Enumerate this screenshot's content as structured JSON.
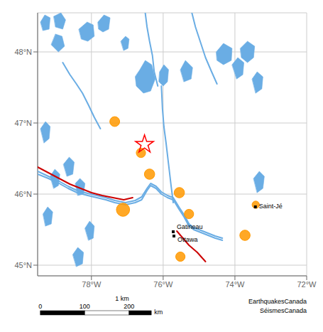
{
  "chart_data": {
    "type": "map",
    "xlim": [
      -79.5,
      -72
    ],
    "ylim": [
      44.85,
      48.55
    ],
    "xticks": [
      {
        "value": -78,
        "label": "78°W"
      },
      {
        "value": -76,
        "label": "76°W"
      },
      {
        "value": -74,
        "label": "74°W"
      },
      {
        "value": -72,
        "label": "72°W"
      }
    ],
    "yticks": [
      {
        "value": 45,
        "label": "45°N"
      },
      {
        "value": 46,
        "label": "46°N"
      },
      {
        "value": 47,
        "label": "47°N"
      },
      {
        "value": 48,
        "label": "48°N"
      }
    ],
    "grid": true,
    "series": [
      {
        "type": "polygon",
        "color": "#6aade4",
        "polygons": [
          [
            [
              -79.42,
              48.42
            ],
            [
              -79.3,
              48.52
            ],
            [
              -79.15,
              48.48
            ],
            [
              -79.18,
              48.32
            ],
            [
              -79.35,
              48.3
            ]
          ],
          [
            [
              -79.05,
              48.5
            ],
            [
              -78.85,
              48.55
            ],
            [
              -78.72,
              48.45
            ],
            [
              -78.8,
              48.32
            ],
            [
              -79.0,
              48.35
            ]
          ],
          [
            [
              -79.12,
              48.1
            ],
            [
              -78.92,
              48.0
            ],
            [
              -78.75,
              48.08
            ],
            [
              -78.82,
              48.22
            ],
            [
              -79.0,
              48.25
            ]
          ],
          [
            [
              -78.35,
              48.32
            ],
            [
              -78.12,
              48.42
            ],
            [
              -77.95,
              48.38
            ],
            [
              -77.92,
              48.22
            ],
            [
              -78.1,
              48.15
            ],
            [
              -78.28,
              48.18
            ]
          ],
          [
            [
              -77.82,
              48.42
            ],
            [
              -77.65,
              48.52
            ],
            [
              -77.48,
              48.48
            ],
            [
              -77.52,
              48.32
            ],
            [
              -77.68,
              48.28
            ],
            [
              -77.8,
              48.32
            ]
          ],
          [
            [
              -77.18,
              48.15
            ],
            [
              -77.05,
              48.22
            ],
            [
              -76.95,
              48.18
            ],
            [
              -76.98,
              48.05
            ],
            [
              -77.1,
              48.02
            ]
          ],
          [
            [
              -76.65,
              47.75
            ],
            [
              -76.5,
              47.88
            ],
            [
              -76.32,
              47.82
            ],
            [
              -76.22,
              47.62
            ],
            [
              -76.35,
              47.45
            ],
            [
              -76.55,
              47.42
            ],
            [
              -76.75,
              47.52
            ],
            [
              -76.78,
              47.65
            ]
          ],
          [
            [
              -76.1,
              47.72
            ],
            [
              -75.98,
              47.82
            ],
            [
              -75.85,
              47.75
            ],
            [
              -75.88,
              47.58
            ],
            [
              -76.0,
              47.52
            ],
            [
              -76.12,
              47.58
            ]
          ],
          [
            [
              -75.52,
              47.75
            ],
            [
              -75.38,
              47.88
            ],
            [
              -75.18,
              47.78
            ],
            [
              -75.22,
              47.62
            ],
            [
              -75.42,
              47.58
            ]
          ],
          [
            [
              -74.52,
              48.0
            ],
            [
              -74.32,
              48.12
            ],
            [
              -74.08,
              48.05
            ],
            [
              -74.1,
              47.88
            ],
            [
              -74.32,
              47.82
            ],
            [
              -74.5,
              47.88
            ]
          ],
          [
            [
              -73.85,
              48.05
            ],
            [
              -73.65,
              48.15
            ],
            [
              -73.45,
              48.08
            ],
            [
              -73.48,
              47.92
            ],
            [
              -73.65,
              47.85
            ],
            [
              -73.82,
              47.92
            ]
          ],
          [
            [
              -79.42,
              46.92
            ],
            [
              -79.28,
              47.02
            ],
            [
              -79.15,
              46.95
            ],
            [
              -79.18,
              46.78
            ],
            [
              -79.32,
              46.72
            ]
          ],
          [
            [
              -79.35,
              45.72
            ],
            [
              -79.22,
              45.82
            ],
            [
              -79.08,
              45.75
            ],
            [
              -79.12,
              45.58
            ],
            [
              -79.28,
              45.55
            ]
          ],
          [
            [
              -78.78,
              46.42
            ],
            [
              -78.62,
              46.52
            ],
            [
              -78.48,
              46.45
            ],
            [
              -78.52,
              46.28
            ],
            [
              -78.68,
              46.25
            ]
          ],
          [
            [
              -78.45,
              46.15
            ],
            [
              -78.32,
              46.22
            ],
            [
              -78.18,
              46.15
            ],
            [
              -78.22,
              46.0
            ],
            [
              -78.38,
              45.98
            ]
          ],
          [
            [
              -78.18,
              45.52
            ],
            [
              -78.05,
              45.62
            ],
            [
              -77.92,
              45.55
            ],
            [
              -77.95,
              45.38
            ],
            [
              -78.08,
              45.35
            ]
          ],
          [
            [
              -78.52,
              45.15
            ],
            [
              -78.38,
              45.25
            ],
            [
              -78.22,
              45.18
            ],
            [
              -78.25,
              45.02
            ],
            [
              -78.42,
              44.98
            ]
          ],
          [
            [
              -74.08,
              47.82
            ],
            [
              -73.92,
              47.92
            ],
            [
              -73.75,
              47.85
            ],
            [
              -73.78,
              47.68
            ],
            [
              -73.95,
              47.62
            ]
          ],
          [
            [
              -73.52,
              47.62
            ],
            [
              -73.38,
              47.72
            ],
            [
              -73.22,
              47.65
            ],
            [
              -73.25,
              47.48
            ],
            [
              -73.42,
              47.42
            ]
          ],
          [
            [
              -73.48,
              46.22
            ],
            [
              -73.32,
              46.32
            ],
            [
              -73.18,
              46.25
            ],
            [
              -73.22,
              46.08
            ],
            [
              -73.38,
              46.02
            ]
          ],
          [
            [
              -79.15,
              46.25
            ],
            [
              -79.02,
              46.35
            ],
            [
              -78.88,
              46.28
            ],
            [
              -78.92,
              46.12
            ],
            [
              -79.05,
              46.08
            ]
          ]
        ]
      },
      {
        "type": "line",
        "color": "#6aade4",
        "points": [
          [
            -79.5,
            46.28
          ],
          [
            -79.2,
            46.22
          ],
          [
            -78.9,
            46.15
          ],
          [
            -78.65,
            46.08
          ],
          [
            -78.4,
            46.02
          ],
          [
            -78.1,
            45.98
          ],
          [
            -77.85,
            45.95
          ],
          [
            -77.6,
            45.92
          ],
          [
            -77.35,
            45.88
          ],
          [
            -77.05,
            45.85
          ],
          [
            -76.78,
            45.88
          ],
          [
            -76.6,
            45.92
          ],
          [
            -76.45,
            46.05
          ],
          [
            -76.35,
            46.12
          ],
          [
            -76.2,
            46.08
          ],
          [
            -76.05,
            46.0
          ],
          [
            -75.88,
            45.95
          ],
          [
            -75.72,
            45.92
          ],
          [
            -75.55,
            45.78
          ],
          [
            -75.42,
            45.68
          ],
          [
            -75.28,
            45.55
          ],
          [
            -75.15,
            45.5
          ],
          [
            -75.05,
            45.48
          ],
          [
            -74.9,
            45.45
          ],
          [
            -74.75,
            45.42
          ],
          [
            -74.55,
            45.38
          ],
          [
            -74.35,
            45.35
          ]
        ]
      },
      {
        "type": "line",
        "color": "#6aade4",
        "points": [
          [
            -79.5,
            46.32
          ],
          [
            -79.2,
            46.25
          ],
          [
            -78.9,
            46.18
          ],
          [
            -78.65,
            46.11
          ],
          [
            -78.4,
            46.05
          ],
          [
            -78.1,
            46.01
          ],
          [
            -77.85,
            45.98
          ],
          [
            -77.6,
            45.95
          ],
          [
            -77.35,
            45.91
          ],
          [
            -77.05,
            45.88
          ],
          [
            -76.78,
            45.91
          ],
          [
            -76.6,
            45.96
          ],
          [
            -76.45,
            46.08
          ],
          [
            -76.35,
            46.15
          ],
          [
            -76.2,
            46.11
          ],
          [
            -76.05,
            46.03
          ],
          [
            -75.88,
            45.98
          ],
          [
            -75.72,
            45.95
          ],
          [
            -75.55,
            45.81
          ],
          [
            -75.42,
            45.71
          ],
          [
            -75.28,
            45.58
          ],
          [
            -75.15,
            45.53
          ],
          [
            -75.05,
            45.51
          ],
          [
            -74.9,
            45.48
          ],
          [
            -74.75,
            45.45
          ],
          [
            -74.55,
            45.41
          ],
          [
            -74.35,
            45.38
          ]
        ]
      },
      {
        "type": "line",
        "color": "#6aade4",
        "points": [
          [
            -76.05,
            47.52
          ],
          [
            -76.02,
            47.2
          ],
          [
            -75.98,
            46.95
          ],
          [
            -75.92,
            46.72
          ],
          [
            -75.85,
            46.42
          ],
          [
            -75.78,
            46.12
          ],
          [
            -75.72,
            45.88
          ]
        ]
      },
      {
        "type": "line",
        "color": "#6aade4",
        "points": [
          [
            -76.5,
            48.55
          ],
          [
            -76.45,
            48.35
          ],
          [
            -76.38,
            48.15
          ],
          [
            -76.3,
            47.95
          ],
          [
            -76.25,
            47.72
          ],
          [
            -76.15,
            47.52
          ]
        ]
      },
      {
        "type": "line",
        "color": "#6aade4",
        "points": [
          [
            -75.2,
            48.55
          ],
          [
            -75.1,
            48.35
          ],
          [
            -74.95,
            48.12
          ],
          [
            -74.82,
            47.92
          ],
          [
            -74.65,
            47.72
          ],
          [
            -74.5,
            47.55
          ]
        ]
      },
      {
        "type": "line",
        "color": "#6aade4",
        "points": [
          [
            -78.8,
            47.85
          ],
          [
            -78.6,
            47.68
          ],
          [
            -78.42,
            47.55
          ],
          [
            -78.25,
            47.42
          ],
          [
            -78.08,
            47.25
          ],
          [
            -77.92,
            47.08
          ],
          [
            -77.75,
            46.92
          ]
        ]
      },
      {
        "type": "line",
        "color": "#cc0000",
        "points": [
          [
            -79.5,
            46.38
          ],
          [
            -79.2,
            46.3
          ],
          [
            -78.9,
            46.22
          ],
          [
            -78.6,
            46.14
          ],
          [
            -78.3,
            46.08
          ],
          [
            -78.0,
            46.02
          ],
          [
            -77.7,
            45.98
          ],
          [
            -77.4,
            45.95
          ],
          [
            -77.1,
            45.92
          ],
          [
            -76.85,
            45.95
          ]
        ]
      },
      {
        "type": "line",
        "color": "#cc0000",
        "points": [
          [
            -75.62,
            45.48
          ],
          [
            -75.45,
            45.38
          ],
          [
            -75.28,
            45.28
          ],
          [
            -75.05,
            45.18
          ],
          [
            -74.82,
            45.05
          ]
        ]
      },
      {
        "type": "scatter",
        "marker": "circle",
        "color": "#ff9900",
        "points": [
          [
            -77.35,
            47.02
          ],
          [
            -76.62,
            46.58
          ],
          [
            -76.38,
            46.28
          ],
          [
            -77.12,
            45.78
          ],
          [
            -75.55,
            46.02
          ],
          [
            -75.28,
            45.72
          ],
          [
            -75.52,
            45.12
          ],
          [
            -73.72,
            45.42
          ],
          [
            -73.42,
            45.85
          ]
        ],
        "size": [
          100,
          90,
          110,
          180,
          110,
          90,
          90,
          110,
          55
        ]
      },
      {
        "type": "scatter",
        "marker": "star",
        "color": "red",
        "points": [
          [
            -76.52,
            46.7
          ]
        ]
      },
      {
        "type": "scatter",
        "marker": "square",
        "color": "black",
        "points": [
          [
            -75.72,
            45.47
          ],
          [
            -75.7,
            45.41
          ],
          [
            -73.43,
            45.82
          ]
        ],
        "labels": [
          "Gatineau",
          "Ottawa",
          "Saint-Jé"
        ]
      }
    ],
    "scale_bar": {
      "ticks": [
        0,
        100,
        200
      ],
      "end": 250,
      "unit": "km",
      "label": "1 km"
    },
    "credit": [
      "EarthquakesCanada",
      "SéismesCanada"
    ]
  }
}
